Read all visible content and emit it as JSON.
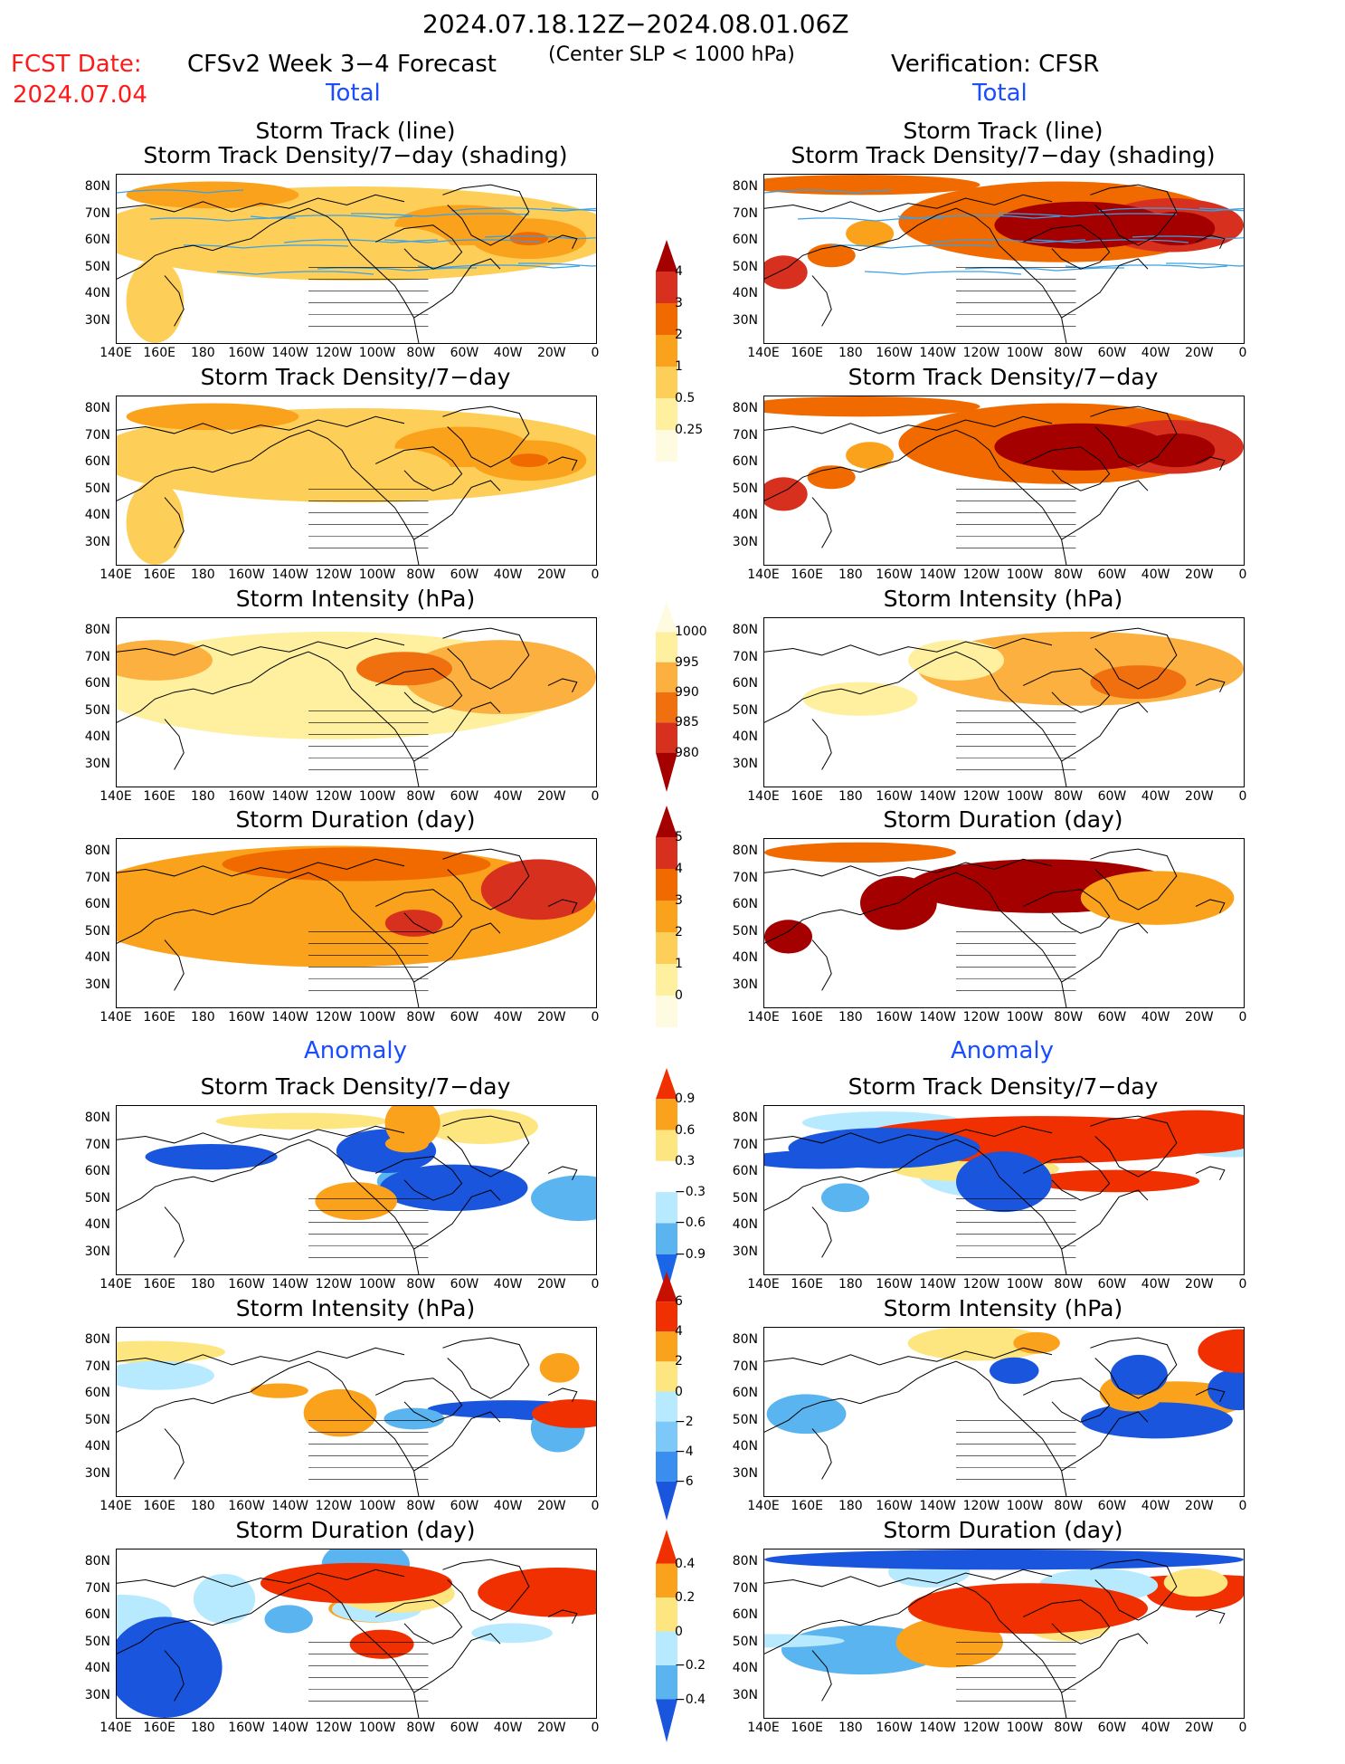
{
  "header": {
    "date_range": "2024.07.18.12Z−2024.08.01.06Z",
    "fcst_label": "FCST Date:",
    "fcst_date": "2024.07.04",
    "model_title": "CFSv2 Week 3−4 Forecast",
    "criteria": "(Center SLP < 1000 hPa)",
    "verification": "Verification: CFSR",
    "total_left": "Total",
    "total_right": "Total",
    "anomaly_left": "Anomaly",
    "anomaly_right": "Anomaly"
  },
  "panels": {
    "titles": [
      [
        "Storm Track (line)",
        "Storm Track Density/7−day (shading)"
      ],
      [
        "Storm Track Density/7−day"
      ],
      [
        "Storm Intensity (hPa)"
      ],
      [
        "Storm Duration (day)"
      ],
      [
        "Storm Track Density/7−day"
      ],
      [
        "Storm Intensity (hPa)"
      ],
      [
        "Storm Duration (day)"
      ]
    ],
    "lat_labels": [
      "80N",
      "70N",
      "60N",
      "50N",
      "40N",
      "30N"
    ],
    "lon_labels": [
      "140E",
      "160E",
      "180",
      "160W",
      "140W",
      "120W",
      "100W",
      "80W",
      "60W",
      "40W",
      "20W",
      "0"
    ]
  },
  "colorbars": [
    {
      "ticks": [
        "4",
        "3",
        "2",
        "1",
        "0.5",
        "0.25"
      ],
      "colors": [
        "#a50000",
        "#d7301f",
        "#f06a00",
        "#fba21c",
        "#fdcf58",
        "#fff0a0",
        "#fffbe0"
      ]
    },
    {
      "ticks": [
        "1000",
        "995",
        "990",
        "985",
        "980"
      ],
      "colors": [
        "#fffbe0",
        "#fff0a0",
        "#fbb040",
        "#f07010",
        "#d7301f",
        "#a50000"
      ]
    },
    {
      "ticks": [
        "5",
        "4",
        "3",
        "2",
        "1",
        "0"
      ],
      "colors": [
        "#a50000",
        "#d7301f",
        "#f06a00",
        "#fba21c",
        "#fdcf58",
        "#fff0a0",
        "#fffbe0"
      ]
    },
    {
      "ticks": [
        "0.9",
        "0.6",
        "0.3",
        "−0.3",
        "−0.6",
        "−0.9"
      ],
      "colors": [
        "#f03000",
        "#fba21c",
        "#fde680",
        "#ffffff",
        "#b8eaff",
        "#5ab4f0",
        "#1a66e6"
      ]
    },
    {
      "ticks": [
        "6",
        "4",
        "2",
        "0",
        "−2",
        "−4",
        "−6"
      ],
      "colors": [
        "#c81000",
        "#f03000",
        "#fba21c",
        "#fde680",
        "#b8eaff",
        "#7cc8f8",
        "#3a8ef0",
        "#1a55dd"
      ]
    },
    {
      "ticks": [
        "0.4",
        "0.2",
        "0",
        "−0.2",
        "−0.4"
      ],
      "colors": [
        "#f03000",
        "#fba21c",
        "#fde680",
        "#b8eaff",
        "#5ab4f0",
        "#1a55dd"
      ]
    }
  ],
  "colors": {
    "track_line": "#3aa0e6",
    "header_red": "#ff1a1a",
    "header_blue": "#1a4dff"
  }
}
